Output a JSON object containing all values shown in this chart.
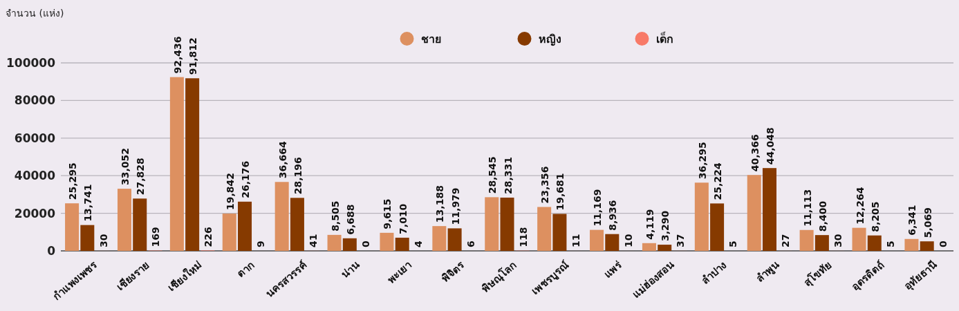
{
  "chart_data": {
    "type": "bar",
    "ylabel": "จำนวน (แห่ง)",
    "categories": [
      "กำแพงเพชร",
      "เชียงราย",
      "เชียงใหม่",
      "ตาก",
      "นครสวรรค์",
      "น่าน",
      "พะเยา",
      "พิจิตร",
      "พิษณุโลก",
      "เพชรบูรณ์",
      "แพร่",
      "แม่ฮ่องสอน",
      "ลำปาง",
      "ลำพูน",
      "สุโขทัย",
      "อุตรดิตถ์",
      "อุทัยธานี"
    ],
    "series": [
      {
        "name": "ชาย",
        "color": "#dd9060",
        "values": [
          25295,
          33052,
          92436,
          19842,
          36664,
          8505,
          9615,
          13188,
          28545,
          23356,
          11169,
          4119,
          36295,
          40366,
          11113,
          12264,
          6341
        ],
        "value_labels": [
          "25,295",
          "33,052",
          "92,436",
          "19,842",
          "36,664",
          "8,505",
          "9,615",
          "13,188",
          "28,545",
          "23,356",
          "11,169",
          "4,119",
          "36,295",
          "40,366",
          "11,113",
          "12,264",
          "6,341"
        ]
      },
      {
        "name": "หญิง",
        "color": "#863a00",
        "values": [
          13741,
          27828,
          91812,
          26176,
          28196,
          6688,
          7010,
          11979,
          28331,
          19681,
          8936,
          3290,
          25224,
          44048,
          8400,
          8205,
          5069
        ],
        "value_labels": [
          "13,741",
          "27,828",
          "91,812",
          "26,176",
          "28,196",
          "6,688",
          "7,010",
          "11,979",
          "28,331",
          "19,681",
          "8,936",
          "3,290",
          "25,224",
          "44,048",
          "8,400",
          "8,205",
          "5,069"
        ]
      },
      {
        "name": "เด็ก",
        "color": "#f87a68",
        "values": [
          30,
          169,
          226,
          9,
          41,
          0,
          4,
          6,
          118,
          11,
          10,
          37,
          5,
          27,
          30,
          5,
          0
        ],
        "value_labels": [
          "30",
          "169",
          "226",
          "9",
          "41",
          "0",
          "4",
          "6",
          "118",
          "11",
          "10",
          "37",
          "5",
          "27",
          "30",
          "5",
          "0"
        ]
      }
    ],
    "ylim": [
      0,
      100000
    ],
    "yticks": [
      0,
      20000,
      40000,
      60000,
      80000,
      100000
    ],
    "grid": "y",
    "legend": "top"
  }
}
